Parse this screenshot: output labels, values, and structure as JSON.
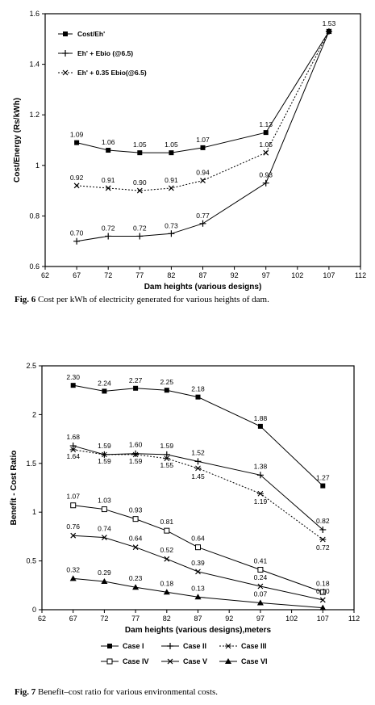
{
  "figures": [
    {
      "caption_label": "Fig. 6",
      "caption_text": "Cost per kWh of electricity generated for various heights of dam."
    },
    {
      "caption_label": "Fig. 7",
      "caption_text": "Benefit–cost ratio for various environmental costs."
    }
  ],
  "chart_data": [
    {
      "type": "line",
      "title": "",
      "xlabel": "Dam heights (various designs)",
      "ylabel": "Cost/Energy  (Rs/kWh)",
      "xlim": [
        62,
        112
      ],
      "ylim": [
        0.6,
        1.6
      ],
      "x_ticks": [
        62,
        67,
        72,
        77,
        82,
        87,
        92,
        97,
        102,
        107,
        112
      ],
      "x_tick_labels": [
        "62",
        "67",
        "72",
        "77",
        "82",
        "87",
        "92",
        "97",
        "102",
        "107",
        "112"
      ],
      "y_ticks": [
        0.6,
        0.8,
        1.0,
        1.2,
        1.4,
        1.6
      ],
      "y_tick_labels": [
        "0.6",
        "0.8",
        "1",
        "1.2",
        "1.4",
        "1.6"
      ],
      "grid": false,
      "legend_position": "top-left",
      "x": [
        67,
        72,
        77,
        82,
        87,
        97,
        107
      ],
      "series": [
        {
          "name": "Cost/Eh'",
          "marker": "square",
          "style": "solid",
          "values": [
            1.09,
            1.06,
            1.05,
            1.05,
            1.07,
            1.13,
            1.53
          ],
          "labels": [
            "1.09",
            "1.06",
            "1.05",
            "1.05",
            "1.07",
            "1.13",
            "1.53"
          ]
        },
        {
          "name": "Eh' + Ebio (@6.5)",
          "marker": "plus",
          "style": "solid",
          "values": [
            0.7,
            0.72,
            0.72,
            0.73,
            0.77,
            0.93,
            1.53
          ],
          "labels": [
            "0.70",
            "0.72",
            "0.72",
            "0.73",
            "0.77",
            "0.93",
            ""
          ]
        },
        {
          "name": "Eh' + 0.35 Ebio(@6.5)",
          "marker": "x",
          "style": "dotted",
          "values": [
            0.92,
            0.91,
            0.9,
            0.91,
            0.94,
            1.05,
            1.53
          ],
          "labels": [
            "0.92",
            "0.91",
            "0.90",
            "0.91",
            "0.94",
            "1.05",
            ""
          ]
        }
      ]
    },
    {
      "type": "line",
      "title": "",
      "xlabel": "Dam heights (various designs),meters",
      "ylabel": "Benefit - Cost Ratio",
      "xlim": [
        62,
        112
      ],
      "ylim": [
        0,
        2.5
      ],
      "x_ticks": [
        62,
        67,
        72,
        77,
        82,
        87,
        92,
        97,
        102,
        107,
        112
      ],
      "x_tick_labels": [
        "62",
        "67",
        "72",
        "77",
        "82",
        "87",
        "92",
        "97",
        "102",
        "107",
        "112"
      ],
      "y_ticks": [
        0,
        0.5,
        1.0,
        1.5,
        2.0,
        2.5
      ],
      "y_tick_labels": [
        "0",
        "0.5",
        "1",
        "1.5",
        "2",
        "2.5"
      ],
      "grid": false,
      "legend_position": "bottom",
      "x": [
        67,
        72,
        77,
        82,
        87,
        97,
        107
      ],
      "series": [
        {
          "name": "Case I",
          "marker": "square",
          "style": "solid",
          "values": [
            2.3,
            2.24,
            2.27,
            2.25,
            2.18,
            1.88,
            1.27
          ],
          "labels": [
            "2.30",
            "2.24",
            "2.27",
            "2.25",
            "2.18",
            "1.88",
            "1.27"
          ]
        },
        {
          "name": "Case II",
          "marker": "plus",
          "style": "solid",
          "values": [
            1.68,
            1.59,
            1.6,
            1.59,
            1.52,
            1.38,
            0.82
          ],
          "labels": [
            "1.68",
            "1.59",
            "1.60",
            "1.59",
            "1.52",
            "1.38",
            "0.82"
          ]
        },
        {
          "name": "Case III",
          "marker": "star",
          "style": "dotted",
          "values": [
            1.64,
            1.59,
            1.59,
            1.55,
            1.45,
            1.19,
            0.72
          ],
          "labels": [
            "1.64",
            "1.59",
            "1.59",
            "1.55",
            "1.45",
            "1.19",
            "0.72"
          ]
        },
        {
          "name": "Case IV",
          "marker": "open-square",
          "style": "solid",
          "values": [
            1.07,
            1.03,
            0.93,
            0.81,
            0.64,
            0.41,
            0.18
          ],
          "labels": [
            "1.07",
            "1.03",
            "0.93",
            "0.81",
            "0.64",
            "0.41",
            "0.18"
          ]
        },
        {
          "name": "Case V",
          "marker": "x",
          "style": "solid",
          "values": [
            0.76,
            0.74,
            0.64,
            0.52,
            0.39,
            0.24,
            0.1
          ],
          "labels": [
            "0.76",
            "0.74",
            "0.64",
            "0.52",
            "0.39",
            "0.24",
            "0.10"
          ]
        },
        {
          "name": "Case VI",
          "marker": "triangle",
          "style": "solid",
          "values": [
            0.32,
            0.29,
            0.23,
            0.18,
            0.13,
            0.07,
            0.02
          ],
          "labels": [
            "0.32",
            "0.29",
            "0.23",
            "0.18",
            "0.13",
            "0.07",
            ""
          ]
        }
      ]
    }
  ]
}
